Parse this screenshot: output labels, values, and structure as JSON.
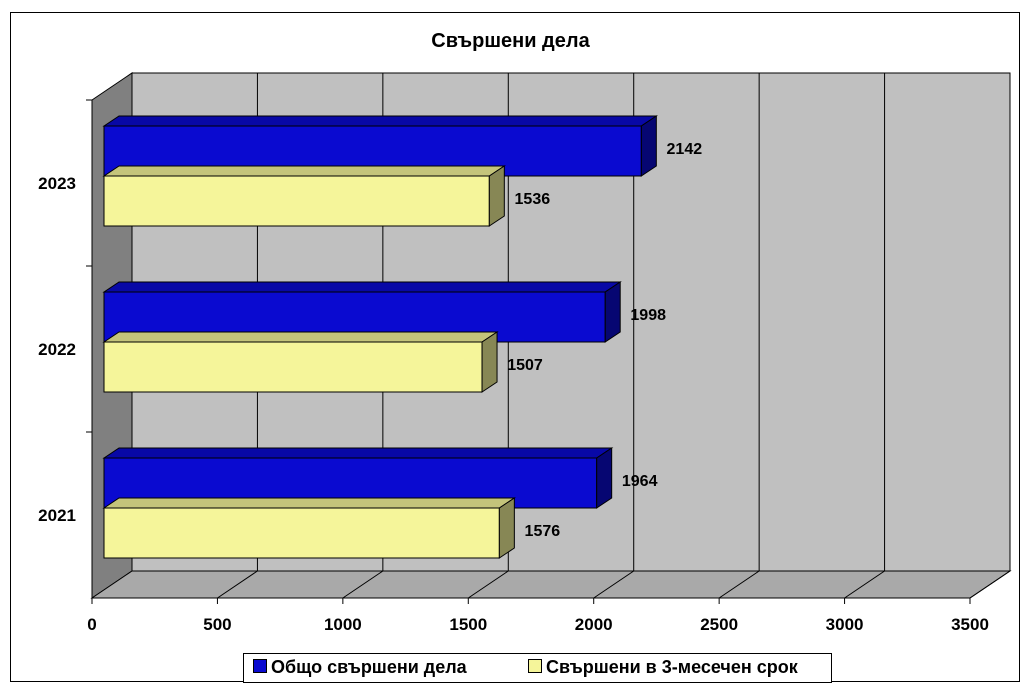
{
  "chart_data": {
    "type": "bar",
    "orientation": "horizontal",
    "title": "Свършени дела",
    "categories": [
      "2021",
      "2022",
      "2023"
    ],
    "series": [
      {
        "name": "Общо свършени дела",
        "values": [
          1964,
          1998,
          2142
        ],
        "color": "#0a0ad0"
      },
      {
        "name": "Свършени в 3-месечен срок",
        "values": [
          1576,
          1507,
          1536
        ],
        "color": "#f5f59a"
      }
    ],
    "xlim": [
      0,
      3500
    ],
    "xticks": [
      "0",
      "500",
      "1000",
      "1500",
      "2000",
      "2500",
      "3000",
      "3500"
    ],
    "data_labels": true,
    "grid": true,
    "legend_position": "bottom",
    "plot_background": "#c0c0c0"
  }
}
